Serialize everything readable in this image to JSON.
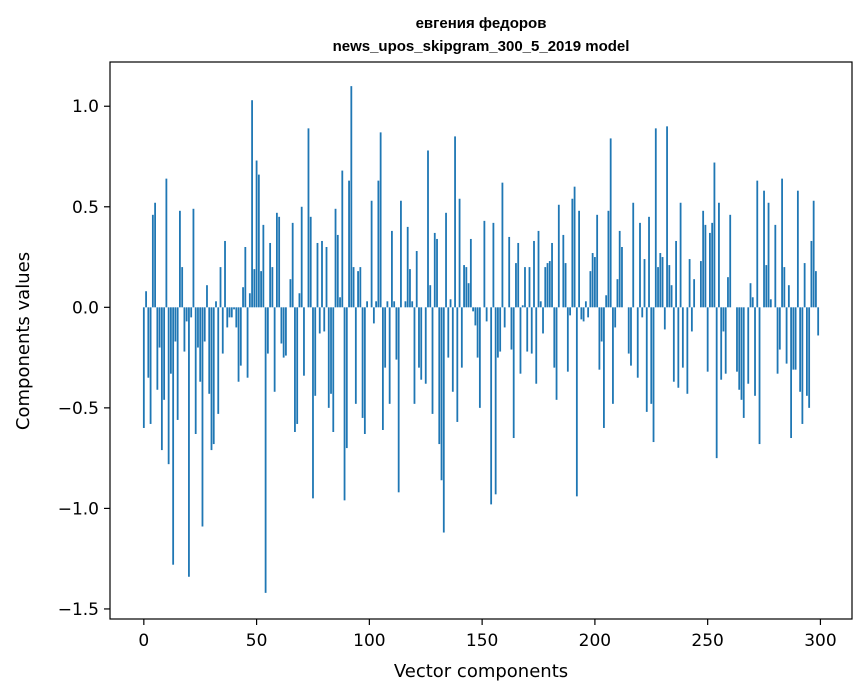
{
  "chart_data": {
    "type": "bar",
    "title": "евгения федоров",
    "subtitle": "news_upos_skipgram_300_5_2019 model",
    "xlabel": "Vector components",
    "ylabel": "Components values",
    "xlim": [
      -15,
      314
    ],
    "ylim": [
      -1.55,
      1.22
    ],
    "x_ticks": [
      0,
      50,
      100,
      150,
      200,
      250,
      300
    ],
    "x_tick_labels": [
      "0",
      "50",
      "100",
      "150",
      "200",
      "250",
      "300"
    ],
    "y_ticks": [
      -1.5,
      -1.0,
      -0.5,
      0.0,
      0.5,
      1.0
    ],
    "y_tick_labels": [
      "−1.5",
      "−1.0",
      "−0.5",
      "0.0",
      "0.5",
      "1.0"
    ],
    "bar_color": "#1f77b4",
    "grid": false,
    "x": "0..299",
    "values": [
      -0.6,
      0.08,
      -0.35,
      -0.58,
      0.46,
      0.52,
      -0.41,
      -0.2,
      -0.71,
      -0.46,
      0.64,
      -0.78,
      -0.33,
      -1.28,
      -0.17,
      -0.56,
      0.48,
      0.2,
      -0.22,
      -0.07,
      -1.34,
      -0.05,
      0.49,
      -0.63,
      -0.2,
      -0.37,
      -1.09,
      -0.17,
      0.11,
      -0.43,
      -0.71,
      -0.68,
      0.03,
      -0.53,
      0.2,
      -0.23,
      0.33,
      -0.1,
      -0.05,
      -0.05,
      -0.01,
      -0.1,
      -0.37,
      -0.29,
      0.1,
      0.3,
      -0.35,
      0.07,
      1.03,
      0.19,
      0.73,
      0.66,
      0.18,
      0.41,
      -1.42,
      -0.23,
      0.32,
      0.2,
      -0.42,
      0.47,
      0.45,
      -0.18,
      -0.25,
      -0.24,
      0.0,
      0.14,
      0.42,
      -0.62,
      -0.58,
      0.07,
      0.5,
      -0.34,
      0.0,
      0.89,
      0.45,
      -0.95,
      -0.44,
      0.32,
      -0.13,
      0.33,
      -0.12,
      0.3,
      -0.5,
      -0.43,
      -0.62,
      0.49,
      0.36,
      0.05,
      0.68,
      -0.96,
      -0.7,
      0.63,
      1.1,
      0.2,
      -0.48,
      0.18,
      0.2,
      -0.55,
      -0.63,
      0.03,
      0.0,
      0.53,
      -0.08,
      0.03,
      0.63,
      0.87,
      -0.61,
      -0.3,
      0.03,
      -0.48,
      0.38,
      0.03,
      -0.26,
      -0.92,
      0.53,
      0.0,
      0.03,
      0.4,
      0.19,
      0.03,
      -0.48,
      0.28,
      -0.3,
      -0.36,
      0.0,
      -0.38,
      0.78,
      0.11,
      -0.53,
      0.37,
      0.34,
      -0.68,
      -0.86,
      -1.12,
      0.47,
      -0.25,
      0.04,
      -0.42,
      0.85,
      -0.57,
      0.54,
      -0.3,
      0.21,
      0.2,
      0.12,
      0.34,
      -0.02,
      -0.09,
      -0.25,
      -0.5,
      0.0,
      0.43,
      -0.07,
      0.0,
      -0.98,
      0.42,
      -0.93,
      -0.25,
      -0.22,
      0.62,
      -0.1,
      0.0,
      0.35,
      -0.21,
      -0.65,
      0.22,
      0.32,
      -0.33,
      0.01,
      0.2,
      -0.22,
      0.2,
      -0.23,
      0.33,
      -0.38,
      0.38,
      0.03,
      -0.13,
      0.2,
      0.22,
      0.23,
      0.32,
      -0.3,
      -0.46,
      0.51,
      0.0,
      0.36,
      0.22,
      -0.32,
      -0.04,
      0.54,
      0.6,
      -0.94,
      0.48,
      -0.06,
      -0.07,
      0.03,
      -0.05,
      0.18,
      0.27,
      0.25,
      0.46,
      -0.31,
      -0.17,
      -0.6,
      0.06,
      0.48,
      0.84,
      -0.48,
      -0.1,
      0.14,
      0.38,
      0.3,
      0.0,
      0.0,
      -0.23,
      -0.29,
      0.52,
      0.0,
      -0.35,
      0.42,
      -0.05,
      0.24,
      -0.52,
      0.45,
      -0.48,
      -0.67,
      0.89,
      0.2,
      0.27,
      0.25,
      -0.11,
      0.9,
      0.21,
      0.11,
      -0.37,
      0.33,
      -0.4,
      0.52,
      -0.3,
      0.0,
      -0.43,
      0.24,
      -0.12,
      0.14,
      0.0,
      0.0,
      0.23,
      0.48,
      0.41,
      -0.32,
      0.37,
      0.42,
      0.72,
      -0.75,
      0.52,
      -0.36,
      -0.12,
      -0.33,
      0.15,
      0.46,
      0.0,
      0.0,
      -0.32,
      -0.41,
      -0.46,
      -0.55,
      0.0,
      -0.38,
      0.12,
      0.05,
      -0.44,
      0.63,
      -0.68,
      0.0,
      0.58,
      0.21,
      0.52,
      0.04,
      0.0,
      0.41,
      -0.33,
      -0.21,
      0.64,
      0.2,
      -0.28,
      0.11,
      -0.65,
      -0.31,
      -0.31,
      0.58,
      -0.42,
      -0.58,
      0.22,
      -0.44,
      -0.5,
      0.33,
      0.53,
      0.18,
      -0.14
    ]
  }
}
